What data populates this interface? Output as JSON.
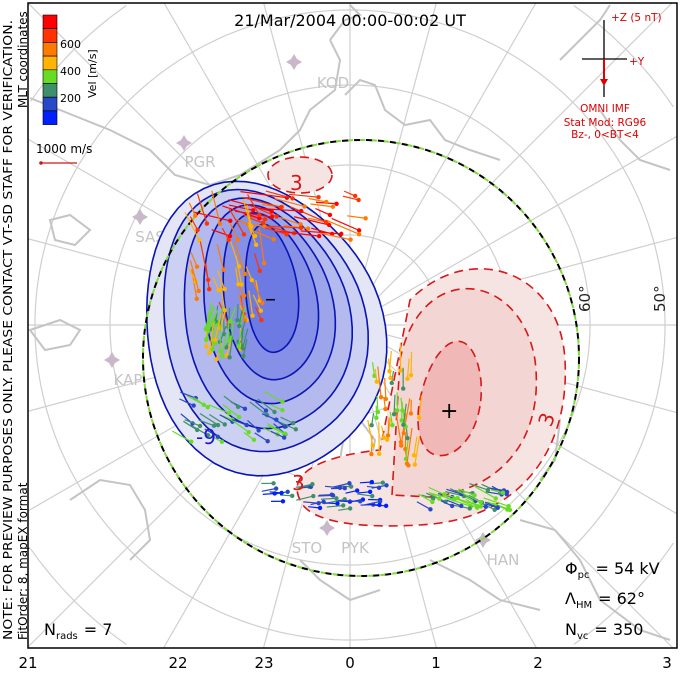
{
  "title": "21/Mar/2004 00:00-00:02 UT",
  "side_note": {
    "line1": "NOTE: FOR PREVIEW PURPOSES ONLY. PLEASE CONTACT VT-SD STAFF FOR VERIFICATION.",
    "line2_bottom": "FitOrder: 8, mapEX format",
    "line2_top": "MLT coordinates"
  },
  "colorbar": {
    "label": "Vel [m/s]",
    "ticks": [
      "600",
      "400",
      "200"
    ],
    "colors": [
      "#ff0000",
      "#ff3300",
      "#ff7a00",
      "#ffb400",
      "#66dd22",
      "#3f8f6a",
      "#2848c8",
      "#0020ff"
    ]
  },
  "scale_vector": {
    "label": "1000 m/s",
    "color": "#d01818"
  },
  "imf": {
    "z_label": "+Z (5 nT)",
    "y_label": "+Y",
    "source": "OMNI IMF",
    "stat_model": "Stat Mod: RG96",
    "condition": "Bz-, 0<BT<4",
    "color": "#e00000"
  },
  "stations": [
    "KOD",
    "PGR",
    "SAS",
    "KAP",
    "STO",
    "PYK",
    "HAN"
  ],
  "lat_labels": [
    "60°",
    "50°"
  ],
  "mlt_labels": [
    "21",
    "22",
    "23",
    "0",
    "1",
    "2",
    "3"
  ],
  "contour_labels": {
    "neg_outer": "-9",
    "pos_a": "3",
    "pos_b": "3",
    "pos_c": "3",
    "min_marker": "–",
    "max_marker": "+"
  },
  "stats": {
    "phi_symbol": "Φ",
    "phi_sub": "pc",
    "phi_value": "=  54  kV",
    "lambda_symbol": "Λ",
    "lambda_sub": "HM",
    "lambda_value": "=  62°",
    "nvc_symbol": "N",
    "nvc_sub": "vc",
    "nvc_value": "=  350",
    "nrads_symbol": "N",
    "nrads_sub": "rads",
    "nrads_value": "=  7"
  },
  "colors": {
    "negative_cell": "#0a14b4",
    "positive_cell": "#d81818",
    "grid": "#c8c8c8",
    "coast": "#c0c0c0"
  }
}
